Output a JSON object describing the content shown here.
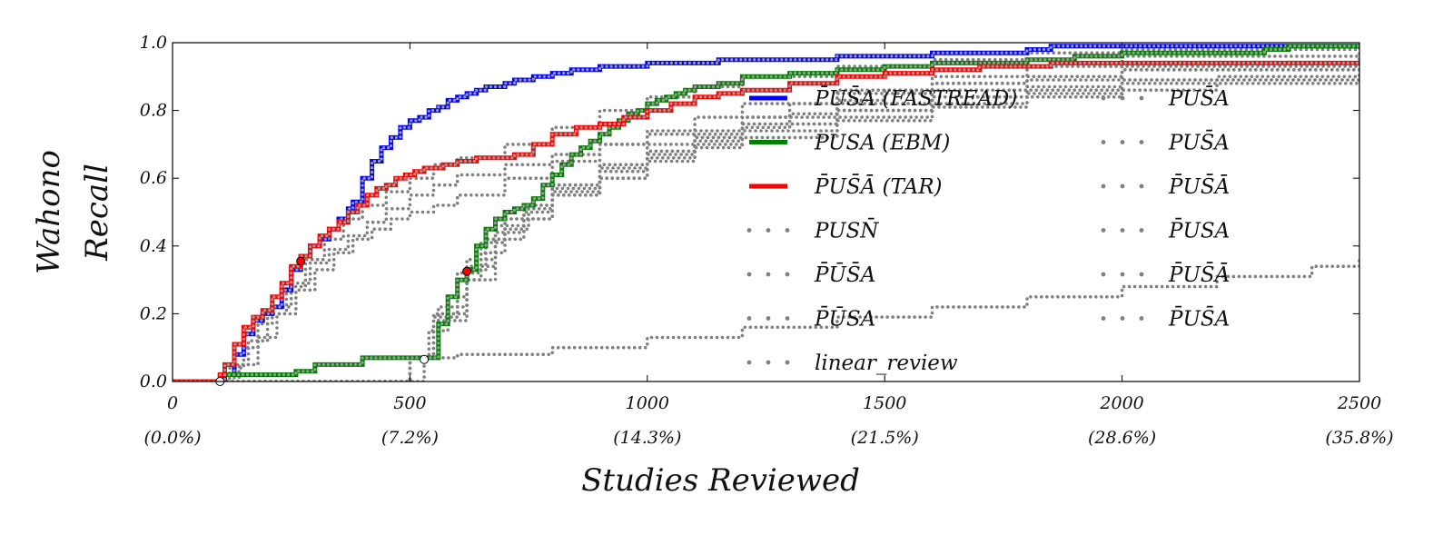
{
  "chart_data": {
    "type": "line",
    "title": "",
    "xlabel": "Studies Reviewed",
    "ylabel": [
      "Wahono",
      "Recall"
    ],
    "xlim": [
      0,
      2500
    ],
    "ylim": [
      0,
      1.0
    ],
    "grid": false,
    "legend_placement": "center-right",
    "x_ticks": [
      {
        "value": 0,
        "label": "0",
        "sublabel": "(0.0%)"
      },
      {
        "value": 500,
        "label": "500",
        "sublabel": "(7.2%)"
      },
      {
        "value": 1000,
        "label": "1000",
        "sublabel": "(14.3%)"
      },
      {
        "value": 1500,
        "label": "1500",
        "sublabel": "(21.5%)"
      },
      {
        "value": 2000,
        "label": "2000",
        "sublabel": "(28.6%)"
      },
      {
        "value": 2500,
        "label": "2500",
        "sublabel": "(35.8%)"
      }
    ],
    "y_ticks": [
      {
        "value": 0.0,
        "label": "0.0"
      },
      {
        "value": 0.2,
        "label": "0.2"
      },
      {
        "value": 0.4,
        "label": "0.4"
      },
      {
        "value": 0.6,
        "label": "0.6"
      },
      {
        "value": 0.8,
        "label": "0.8"
      },
      {
        "value": 1.0,
        "label": "1.0"
      }
    ],
    "series": [
      {
        "name": "P̄US̄A (FASTREAD)",
        "style": "solid",
        "color": "#0000ff",
        "x": [
          0,
          90,
          110,
          130,
          150,
          170,
          190,
          210,
          230,
          250,
          270,
          290,
          310,
          330,
          350,
          370,
          380,
          400,
          420,
          440,
          460,
          480,
          500,
          520,
          540,
          560,
          580,
          600,
          620,
          640,
          660,
          680,
          700,
          720,
          740,
          760,
          780,
          800,
          820,
          840,
          860,
          880,
          900,
          950,
          1000,
          1050,
          1100,
          1150,
          1200,
          1400,
          1600,
          1800,
          1850,
          2000,
          2200,
          2500
        ],
        "y": [
          0,
          0,
          0.02,
          0.08,
          0.14,
          0.18,
          0.2,
          0.22,
          0.27,
          0.33,
          0.37,
          0.4,
          0.42,
          0.45,
          0.48,
          0.51,
          0.53,
          0.6,
          0.65,
          0.69,
          0.72,
          0.75,
          0.77,
          0.78,
          0.8,
          0.81,
          0.83,
          0.84,
          0.85,
          0.86,
          0.87,
          0.87,
          0.88,
          0.89,
          0.89,
          0.9,
          0.9,
          0.91,
          0.91,
          0.92,
          0.92,
          0.92,
          0.93,
          0.93,
          0.94,
          0.94,
          0.94,
          0.95,
          0.95,
          0.96,
          0.97,
          0.98,
          0.99,
          0.99,
          0.99,
          0.99
        ]
      },
      {
        "name": "PUSA (EBM)",
        "style": "solid",
        "color": "#008000",
        "x": [
          0,
          80,
          100,
          200,
          260,
          300,
          380,
          400,
          500,
          540,
          560,
          580,
          600,
          620,
          640,
          660,
          680,
          700,
          720,
          740,
          760,
          780,
          800,
          820,
          840,
          860,
          880,
          900,
          920,
          940,
          960,
          980,
          1000,
          1020,
          1040,
          1060,
          1080,
          1100,
          1150,
          1200,
          1300,
          1400,
          1500,
          1600,
          1800,
          1900,
          2000,
          2300,
          2350,
          2500
        ],
        "y": [
          0,
          0,
          0.02,
          0.02,
          0.03,
          0.05,
          0.05,
          0.07,
          0.07,
          0.07,
          0.17,
          0.25,
          0.3,
          0.33,
          0.4,
          0.45,
          0.48,
          0.5,
          0.51,
          0.52,
          0.54,
          0.58,
          0.61,
          0.64,
          0.67,
          0.69,
          0.71,
          0.73,
          0.75,
          0.77,
          0.79,
          0.8,
          0.82,
          0.83,
          0.84,
          0.85,
          0.86,
          0.87,
          0.88,
          0.9,
          0.91,
          0.92,
          0.93,
          0.94,
          0.95,
          0.96,
          0.97,
          0.98,
          0.99,
          0.99
        ]
      },
      {
        "name": "P̄US̄Ā (TAR)",
        "style": "solid",
        "color": "#ff0000",
        "x": [
          0,
          90,
          100,
          110,
          130,
          150,
          170,
          190,
          210,
          230,
          250,
          270,
          290,
          310,
          330,
          350,
          370,
          390,
          410,
          430,
          450,
          470,
          490,
          510,
          530,
          550,
          570,
          600,
          640,
          680,
          720,
          760,
          800,
          850,
          900,
          950,
          1000,
          1050,
          1100,
          1150,
          1200,
          1300,
          1400,
          1500,
          1600,
          1700,
          1800,
          1850,
          1900,
          2000,
          2200,
          2500
        ],
        "y": [
          0,
          0,
          0.02,
          0.05,
          0.11,
          0.16,
          0.19,
          0.21,
          0.25,
          0.29,
          0.34,
          0.37,
          0.4,
          0.43,
          0.45,
          0.47,
          0.5,
          0.52,
          0.55,
          0.57,
          0.58,
          0.6,
          0.61,
          0.62,
          0.63,
          0.63,
          0.64,
          0.65,
          0.66,
          0.66,
          0.67,
          0.7,
          0.73,
          0.75,
          0.76,
          0.78,
          0.8,
          0.82,
          0.84,
          0.85,
          0.86,
          0.88,
          0.9,
          0.91,
          0.92,
          0.93,
          0.93,
          0.94,
          0.94,
          0.94,
          0.94,
          0.94
        ]
      },
      {
        "name": "PUSN̄",
        "style": "dotted",
        "color": "#808080",
        "x": [
          0,
          100,
          130,
          160,
          200,
          240,
          280,
          320,
          360,
          400,
          450,
          500,
          550,
          600,
          700,
          800,
          900,
          1000,
          1100,
          1200,
          1400,
          1600,
          1800,
          2000,
          2500
        ],
        "y": [
          0,
          0,
          0.05,
          0.12,
          0.2,
          0.28,
          0.36,
          0.42,
          0.48,
          0.52,
          0.56,
          0.6,
          0.64,
          0.66,
          0.7,
          0.75,
          0.8,
          0.84,
          0.87,
          0.9,
          0.93,
          0.95,
          0.97,
          0.98,
          0.99
        ]
      },
      {
        "name": "P̄ŪS̄A",
        "style": "dotted",
        "color": "#808080",
        "x": [
          0,
          110,
          140,
          180,
          220,
          260,
          300,
          340,
          380,
          420,
          460,
          500,
          550,
          600,
          700,
          800,
          900,
          1000,
          1100,
          1200,
          1400,
          1600,
          1800,
          2000,
          2500
        ],
        "y": [
          0,
          0,
          0.05,
          0.13,
          0.2,
          0.27,
          0.33,
          0.38,
          0.42,
          0.45,
          0.48,
          0.5,
          0.52,
          0.55,
          0.6,
          0.65,
          0.7,
          0.74,
          0.78,
          0.82,
          0.86,
          0.9,
          0.93,
          0.96,
          0.98
        ]
      },
      {
        "name": "P̄ŪSA",
        "style": "dotted",
        "color": "#808080",
        "x": [
          0,
          100,
          120,
          150,
          180,
          210,
          250,
          290,
          330,
          370,
          410,
          450,
          500,
          550,
          600,
          700,
          800,
          900,
          1000,
          1200,
          1400,
          1600,
          1800,
          2000,
          2500
        ],
        "y": [
          0,
          0,
          0.04,
          0.1,
          0.17,
          0.22,
          0.29,
          0.35,
          0.39,
          0.43,
          0.47,
          0.51,
          0.55,
          0.58,
          0.61,
          0.64,
          0.67,
          0.7,
          0.73,
          0.78,
          0.82,
          0.86,
          0.89,
          0.92,
          0.95
        ]
      },
      {
        "name": "linear_review",
        "style": "dotted",
        "color": "#808080",
        "x": [
          0,
          530,
          600,
          800,
          1000,
          1200,
          1400,
          1600,
          1800,
          2000,
          2200,
          2400,
          2500
        ],
        "y": [
          0,
          0.07,
          0.08,
          0.1,
          0.13,
          0.16,
          0.19,
          0.22,
          0.25,
          0.28,
          0.31,
          0.34,
          0.36
        ]
      },
      {
        "name": "PUS̄A",
        "style": "dotted",
        "color": "#808080",
        "x": [
          0,
          500,
          540,
          580,
          620,
          660,
          700,
          800,
          900,
          1000,
          1100,
          1200,
          1400,
          1600,
          1800,
          2000,
          2200,
          2500
        ],
        "y": [
          0,
          0.07,
          0.15,
          0.25,
          0.33,
          0.42,
          0.48,
          0.55,
          0.6,
          0.65,
          0.69,
          0.72,
          0.77,
          0.81,
          0.84,
          0.86,
          0.88,
          0.9
        ]
      },
      {
        "name": "PUS̄A",
        "style": "dotted",
        "color": "#808080",
        "x": [
          0,
          500,
          550,
          600,
          650,
          700,
          750,
          800,
          900,
          1000,
          1100,
          1200,
          1400,
          1600,
          1800,
          2000,
          2500
        ],
        "y": [
          0,
          0.07,
          0.2,
          0.3,
          0.38,
          0.45,
          0.52,
          0.58,
          0.64,
          0.68,
          0.72,
          0.76,
          0.8,
          0.84,
          0.86,
          0.89,
          0.92
        ]
      },
      {
        "name": "P̄US̄Ā",
        "style": "dotted",
        "color": "#808080",
        "x": [
          0,
          500,
          560,
          620,
          680,
          740,
          800,
          900,
          1000,
          1100,
          1200,
          1400,
          1600,
          1800,
          2000,
          2200,
          2500
        ],
        "y": [
          0,
          0.07,
          0.18,
          0.3,
          0.42,
          0.5,
          0.55,
          0.6,
          0.66,
          0.7,
          0.74,
          0.78,
          0.82,
          0.85,
          0.88,
          0.9,
          0.93
        ]
      },
      {
        "name": "P̄USA",
        "style": "dotted",
        "color": "#808080",
        "x": [
          0,
          500,
          560,
          620,
          680,
          740,
          800,
          900,
          1000,
          1100,
          1200,
          1300,
          1400,
          1500,
          1600,
          1800,
          2000,
          2500
        ],
        "y": [
          0,
          0.07,
          0.22,
          0.36,
          0.46,
          0.52,
          0.58,
          0.63,
          0.67,
          0.71,
          0.75,
          0.79,
          0.83,
          0.86,
          0.88,
          0.9,
          0.92,
          0.94
        ]
      },
      {
        "name": "P̄US̄Ā",
        "style": "dotted",
        "color": "#808080",
        "x": [
          0,
          500,
          550,
          600,
          650,
          700,
          800,
          900,
          1000,
          1100,
          1200,
          1400,
          1600,
          1800,
          2000,
          2500
        ],
        "y": [
          0,
          0.07,
          0.19,
          0.32,
          0.41,
          0.48,
          0.56,
          0.62,
          0.68,
          0.72,
          0.76,
          0.8,
          0.84,
          0.87,
          0.89,
          0.92
        ]
      },
      {
        "name": "P̄US̄A",
        "style": "dotted",
        "color": "#808080",
        "x": [
          0,
          500,
          560,
          620,
          680,
          740,
          800,
          900,
          1000,
          1100,
          1200,
          1300,
          1400,
          1600,
          1800,
          2000,
          2500
        ],
        "y": [
          0,
          0.07,
          0.2,
          0.34,
          0.44,
          0.51,
          0.57,
          0.64,
          0.7,
          0.74,
          0.78,
          0.82,
          0.85,
          0.88,
          0.9,
          0.93,
          0.96
        ]
      }
    ],
    "markers": [
      {
        "x": 270,
        "y": 0.355,
        "fill": "#ff0000"
      },
      {
        "x": 620,
        "y": 0.325,
        "fill": "#ff0000"
      },
      {
        "x": 100,
        "y": 0.0,
        "fill": "#ffffff"
      },
      {
        "x": 530,
        "y": 0.065,
        "fill": "#ffffff"
      }
    ],
    "legend": {
      "columns": [
        [
          {
            "label": "P̄US̄A (FASTREAD)",
            "series": 0
          },
          {
            "label": "PUSA (EBM)",
            "series": 1
          },
          {
            "label": "P̄US̄Ā (TAR)",
            "series": 2
          },
          {
            "label": "PUSN̄",
            "series": 3
          },
          {
            "label": "P̄ŪS̄A",
            "series": 4
          },
          {
            "label": "P̄ŪSA",
            "series": 5
          },
          {
            "label": "linear_review",
            "series": 6
          }
        ],
        [
          {
            "label": "PUS̄A",
            "series": 7
          },
          {
            "label": "PUS̄A",
            "series": 8
          },
          {
            "label": "P̄US̄Ā",
            "series": 9
          },
          {
            "label": "P̄USA",
            "series": 10
          },
          {
            "label": "P̄US̄Ā",
            "series": 11
          },
          {
            "label": "P̄US̄A",
            "series": 12
          }
        ]
      ]
    }
  }
}
